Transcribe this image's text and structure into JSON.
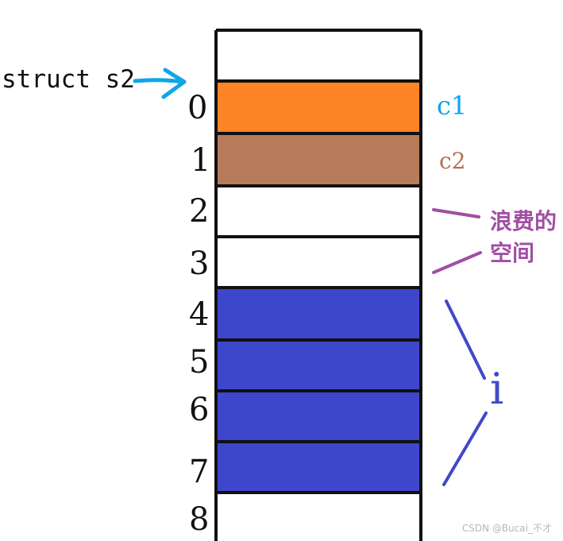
{
  "struct_label": "struct s2",
  "indices": [
    "0",
    "1",
    "2",
    "3",
    "4",
    "5",
    "6",
    "7",
    "8"
  ],
  "cells": [
    {
      "name": "cell-top",
      "color": "#ffffff"
    },
    {
      "name": "cell-0",
      "color": "#ff8426"
    },
    {
      "name": "cell-1",
      "color": "#b77b5a"
    },
    {
      "name": "cell-2",
      "color": "#ffffff"
    },
    {
      "name": "cell-3",
      "color": "#ffffff"
    },
    {
      "name": "cell-4",
      "color": "#3e47cc"
    },
    {
      "name": "cell-5",
      "color": "#3e47cc"
    },
    {
      "name": "cell-6",
      "color": "#3e47cc"
    },
    {
      "name": "cell-7",
      "color": "#3e47cc"
    },
    {
      "name": "cell-8",
      "color": "#ffffff"
    }
  ],
  "annotations": {
    "c1": {
      "text": "c1",
      "color": "#0ea5e9"
    },
    "c2": {
      "text": "c2",
      "color": "#b07150"
    },
    "wasted_line1": {
      "text": "浪费的",
      "color": "#a14ea5"
    },
    "wasted_line2": {
      "text": "空间",
      "color": "#a14ea5"
    },
    "i": {
      "text": "i",
      "color": "#4149c8"
    }
  },
  "arrow": {
    "color": "#0ea5e9"
  },
  "watermark": "CSDN @Bucai_不才"
}
